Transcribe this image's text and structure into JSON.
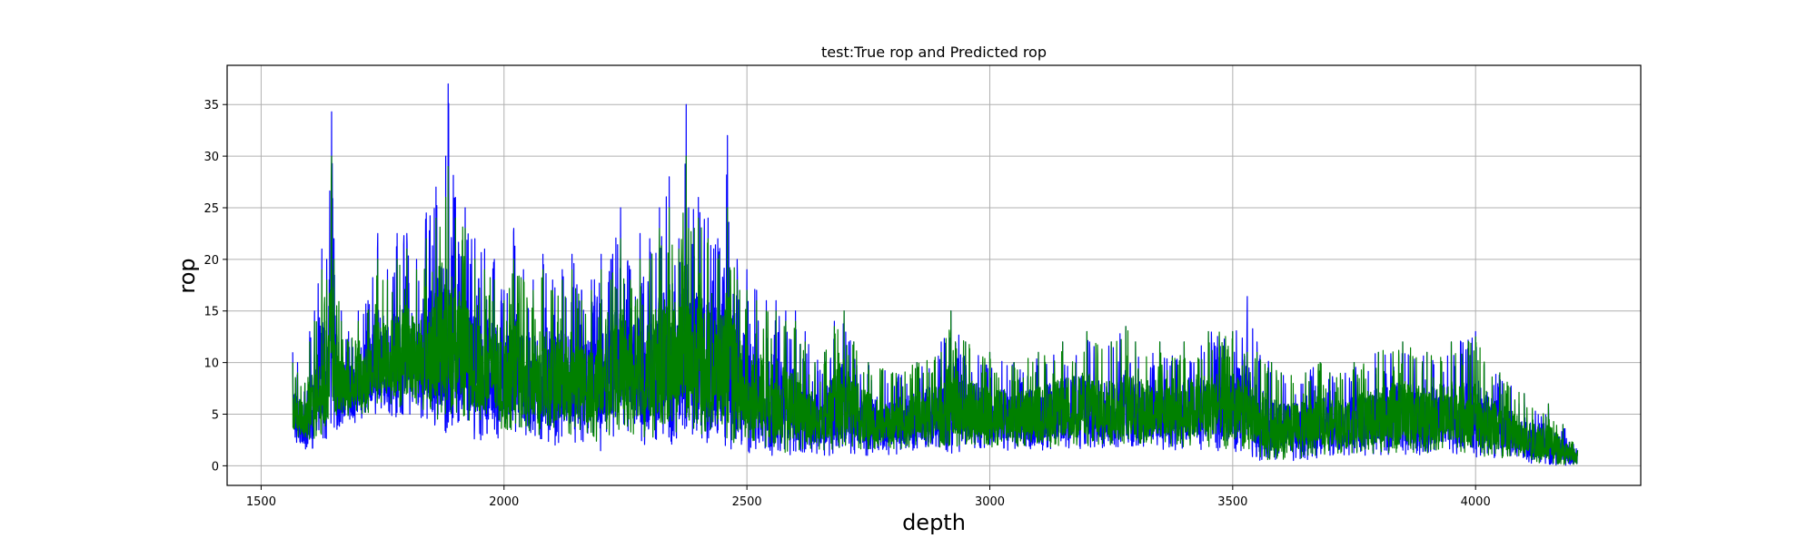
{
  "chart_data": {
    "type": "line",
    "title": "test:True rop and Predicted rop",
    "xlabel": "depth",
    "ylabel": "rop",
    "xlim": [
      1430,
      4340
    ],
    "ylim": [
      -1.9,
      38.8
    ],
    "xticks": [
      1500,
      2000,
      2500,
      3000,
      3500,
      4000
    ],
    "yticks": [
      0,
      5,
      10,
      15,
      20,
      25,
      30,
      35
    ],
    "grid": true,
    "legend": "none",
    "depth_range": [
      1565,
      4210
    ],
    "series": [
      {
        "color": "#0000ff",
        "envelope": {
          "x": [
            1565,
            1575,
            1590,
            1600,
            1610,
            1625,
            1635,
            1645,
            1650,
            1665,
            1680,
            1700,
            1720,
            1740,
            1760,
            1780,
            1800,
            1820,
            1840,
            1860,
            1880,
            1885,
            1900,
            1920,
            1940,
            1960,
            1980,
            2000,
            2020,
            2040,
            2060,
            2080,
            2100,
            2120,
            2140,
            2160,
            2180,
            2200,
            2220,
            2240,
            2260,
            2280,
            2300,
            2320,
            2340,
            2360,
            2375,
            2380,
            2400,
            2420,
            2440,
            2460,
            2480,
            2500,
            2520,
            2540,
            2560,
            2580,
            2600,
            2620,
            2640,
            2660,
            2680,
            2700,
            2720,
            2750,
            2800,
            2850,
            2900,
            2920,
            2950,
            3000,
            3050,
            3100,
            3150,
            3200,
            3250,
            3280,
            3300,
            3350,
            3400,
            3450,
            3500,
            3530,
            3550,
            3580,
            3600,
            3650,
            3680,
            3700,
            3750,
            3800,
            3850,
            3900,
            3950,
            4000,
            4050,
            4100,
            4150,
            4180,
            4210
          ],
          "hi": [
            11,
            10,
            8,
            13,
            15,
            21,
            20,
            34.3,
            22,
            15,
            13,
            15,
            16,
            22.5,
            19,
            22.5,
            22.5,
            20,
            24.5,
            27,
            30,
            37,
            26,
            25,
            22,
            21,
            20,
            17,
            23,
            19,
            18,
            20.5,
            18,
            19,
            20.5,
            17,
            18,
            20.5,
            20,
            25,
            19,
            22.5,
            22,
            25,
            28,
            22,
            35,
            25,
            26,
            24,
            22,
            32,
            20,
            19,
            17,
            16,
            16,
            15,
            15,
            13,
            10,
            11,
            14,
            15,
            12,
            10,
            9,
            10,
            12,
            15,
            12,
            11,
            10,
            11,
            12,
            13,
            12,
            13.5,
            12,
            12,
            12,
            13,
            13,
            16.4,
            12,
            10,
            9,
            9,
            10,
            9,
            10,
            11,
            12,
            11,
            12,
            13,
            9,
            7,
            6,
            4,
            1.5
          ],
          "lo": [
            2,
            1.5,
            1.2,
            1,
            1.5,
            2,
            2.5,
            3,
            3,
            3.5,
            3.5,
            4,
            4.5,
            4.5,
            5,
            4.5,
            5,
            4.5,
            4,
            3.5,
            3,
            4,
            3.5,
            3,
            2.5,
            2.5,
            2.5,
            3,
            3,
            2.5,
            2.5,
            2,
            2,
            2,
            2,
            2,
            1.5,
            1,
            2,
            3,
            2,
            2,
            1.5,
            2,
            2,
            2,
            2.5,
            2.5,
            2,
            2,
            2,
            1.5,
            1,
            1,
            1,
            1,
            1,
            0.8,
            0.8,
            1,
            1,
            1,
            1,
            1,
            1,
            1,
            1,
            1.5,
            1.5,
            1.2,
            1.5,
            1.5,
            1.5,
            1.5,
            1.5,
            1.5,
            1.5,
            1.5,
            1.5,
            1.5,
            1.5,
            1.5,
            1.2,
            1,
            0.5,
            0.5,
            0.5,
            0.5,
            0.8,
            1,
            1,
            1,
            1,
            1,
            1,
            0.8,
            0.5,
            0.3,
            0.1,
            0,
            0
          ]
        }
      },
      {
        "color": "#008000",
        "envelope": {
          "x": [
            1565,
            1575,
            1590,
            1600,
            1610,
            1625,
            1635,
            1645,
            1650,
            1665,
            1680,
            1700,
            1720,
            1740,
            1760,
            1780,
            1800,
            1820,
            1840,
            1860,
            1880,
            1885,
            1900,
            1920,
            1940,
            1960,
            1980,
            2000,
            2020,
            2040,
            2060,
            2080,
            2100,
            2120,
            2140,
            2160,
            2180,
            2200,
            2220,
            2240,
            2260,
            2280,
            2300,
            2320,
            2340,
            2360,
            2375,
            2380,
            2400,
            2420,
            2440,
            2460,
            2480,
            2500,
            2520,
            2540,
            2560,
            2580,
            2600,
            2620,
            2640,
            2660,
            2680,
            2700,
            2720,
            2750,
            2800,
            2850,
            2900,
            2920,
            2950,
            3000,
            3050,
            3100,
            3150,
            3200,
            3250,
            3280,
            3300,
            3350,
            3400,
            3450,
            3500,
            3530,
            3550,
            3580,
            3600,
            3650,
            3680,
            3700,
            3750,
            3800,
            3850,
            3900,
            3950,
            4000,
            4050,
            4100,
            4150,
            4180,
            4210
          ],
          "hi": [
            10,
            9,
            8,
            12,
            14,
            19,
            18,
            30,
            20,
            14,
            12,
            14,
            15,
            20,
            18,
            20,
            21,
            19,
            22,
            24,
            26,
            29,
            24,
            23,
            20,
            19,
            18,
            16,
            20,
            18,
            17,
            19,
            17,
            18,
            19,
            16,
            17,
            19,
            18,
            22,
            18,
            20,
            20,
            23,
            25,
            21,
            30,
            23,
            24,
            22,
            20,
            25,
            18,
            17,
            16,
            15,
            15,
            14,
            14,
            12,
            10,
            11,
            13.5,
            15,
            12,
            10,
            9,
            10,
            11,
            15,
            12,
            11,
            10,
            11,
            12,
            13,
            12,
            13.5,
            12,
            12,
            12,
            13,
            13,
            11,
            11,
            10,
            9,
            9,
            10,
            9,
            10,
            11,
            12,
            11,
            12,
            12.5,
            9,
            7,
            6,
            4,
            1.5
          ],
          "lo": [
            3,
            2.5,
            2,
            2,
            2.5,
            3,
            3.5,
            4,
            4,
            4.5,
            4.5,
            5,
            5,
            5.5,
            6,
            5.5,
            6,
            5.5,
            5,
            4.5,
            4,
            5,
            4.5,
            4,
            3.5,
            3.5,
            3.5,
            3.5,
            3.5,
            3.5,
            3,
            3,
            3,
            3,
            3,
            3,
            2.5,
            2,
            3,
            3.5,
            3,
            3,
            2.5,
            3,
            3,
            3,
            3.5,
            3.5,
            3,
            3,
            3,
            2.5,
            2,
            2,
            2,
            1.8,
            1.5,
            1.2,
            1.2,
            1.5,
            1.5,
            1.5,
            1.5,
            1.5,
            1.5,
            1.5,
            1.5,
            1.8,
            1.8,
            1.5,
            1.8,
            1.8,
            1.8,
            1.8,
            1.8,
            1.8,
            1.8,
            1.8,
            1.8,
            1.8,
            1.8,
            1.8,
            1.5,
            1.5,
            0.8,
            0.5,
            0.5,
            0.8,
            1,
            1.2,
            1.2,
            1.2,
            1.2,
            1.2,
            1.2,
            1,
            0.6,
            0.4,
            0.2,
            0.1,
            0.1
          ]
        }
      }
    ]
  }
}
